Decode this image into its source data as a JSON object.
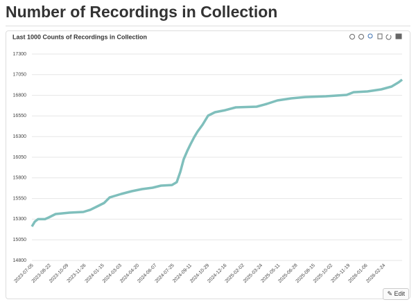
{
  "header": {
    "title": "Number of Recordings in Collection"
  },
  "chart_data": {
    "type": "line",
    "title": "Last 1000 Counts of Recordings in Collection",
    "x": [
      "2023-07-03",
      "2023-07-11",
      "2023-07-20",
      "2023-08-08",
      "2023-08-18",
      "2023-09-06",
      "2023-10-14",
      "2023-11-21",
      "2023-12-10",
      "2023-12-29",
      "2024-01-17",
      "2024-02-01",
      "2024-02-14",
      "2024-03-04",
      "2024-04-02",
      "2024-04-30",
      "2024-05-29",
      "2024-06-21",
      "2024-07-21",
      "2024-08-03",
      "2024-08-13",
      "2024-08-22",
      "2024-09-01",
      "2024-09-10",
      "2024-09-20",
      "2024-09-29",
      "2024-10-13",
      "2024-10-28",
      "2024-11-16",
      "2024-12-14",
      "2025-01-12",
      "2025-03-10",
      "2025-04-07",
      "2025-05-06",
      "2025-06-13",
      "2025-07-21",
      "2025-09-16",
      "2025-11-12",
      "2025-12-01",
      "2026-01-08",
      "2026-02-15",
      "2026-03-15",
      "2026-04-03",
      "2026-04-13"
    ],
    "series": [
      {
        "color": "#7fbfbc",
        "values": [
          15211,
          15270,
          15300,
          15300,
          15320,
          15362,
          15379,
          15387,
          15413,
          15454,
          15496,
          15563,
          15580,
          15605,
          15639,
          15664,
          15681,
          15706,
          15714,
          15748,
          15874,
          16025,
          16126,
          16209,
          16293,
          16360,
          16444,
          16553,
          16595,
          16620,
          16654,
          16662,
          16696,
          16738,
          16763,
          16779,
          16788,
          16805,
          16838,
          16847,
          16872,
          16906,
          16956,
          16990
        ]
      }
    ],
    "xlim": [
      "2023-07-03",
      "2026-04-13"
    ],
    "xticks": [
      "2023-07-05",
      "2023-08-22",
      "2023-10-09",
      "2023-11-26",
      "2024-01-15",
      "2024-03-03",
      "2024-04-20",
      "2024-06-07",
      "2024-07-25",
      "2024-09-11",
      "2024-10-29",
      "2024-12-16",
      "2025-02-02",
      "2025-03-24",
      "2025-05-11",
      "2025-06-28",
      "2025-08-15",
      "2025-10-02",
      "2025-11-19",
      "2026-01-06",
      "2026-02-24"
    ],
    "ylim": [
      14800,
      17300
    ],
    "yticks": [
      14800,
      15050,
      15300,
      15550,
      15800,
      16050,
      16300,
      16550,
      16800,
      17050,
      17300
    ],
    "grid": true
  },
  "buttons": {
    "edit": "Edit"
  }
}
